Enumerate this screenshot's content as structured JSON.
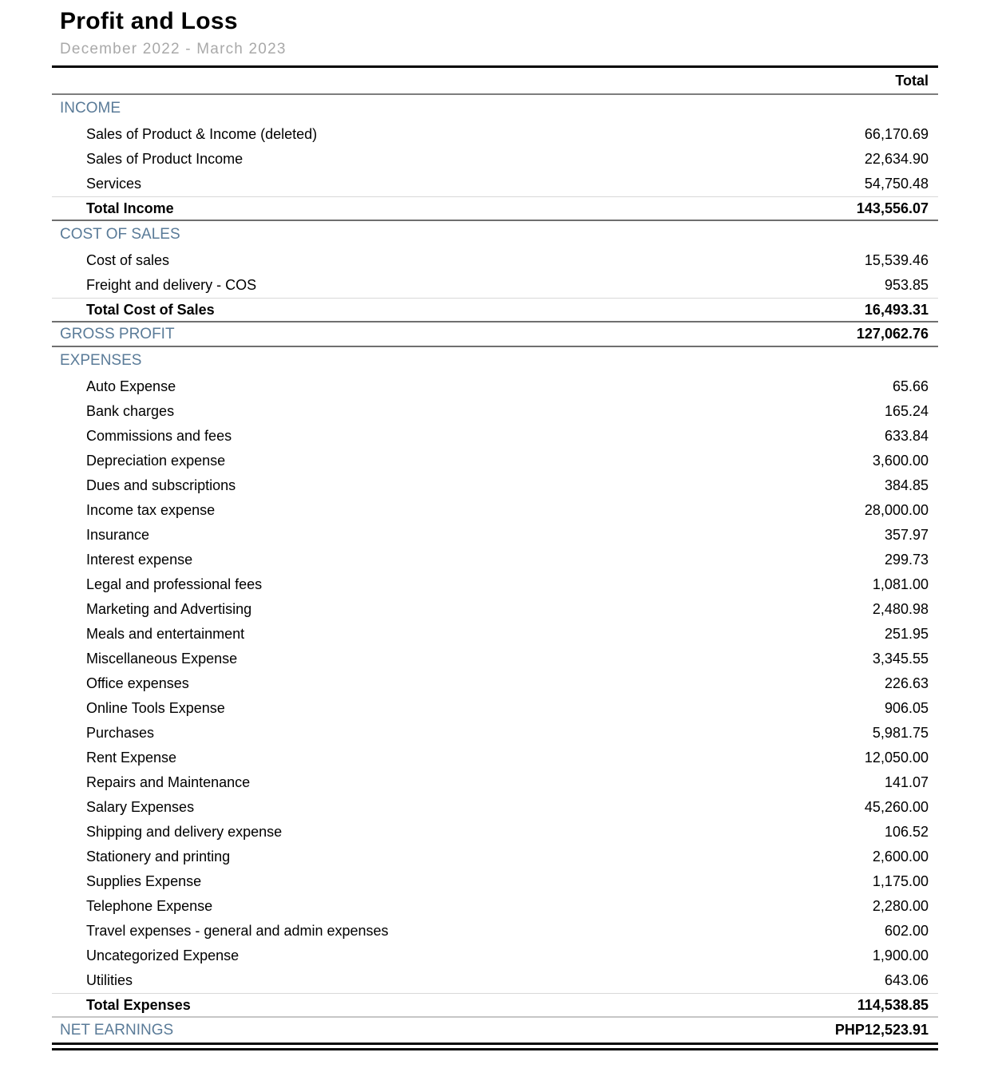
{
  "report": {
    "title": "Profit and Loss",
    "subtitle": "December 2022 - March 2023",
    "column_header": "Total",
    "currency": "PHP"
  },
  "colors": {
    "section_header_blue": "#5a7b98",
    "subtitle_gray": "#a9a9a9",
    "text_black": "#000000"
  },
  "rows": [
    {
      "type": "section",
      "label": "INCOME",
      "value": ""
    },
    {
      "type": "item",
      "label": "Sales of Product & Income (deleted)",
      "value": "66,170.69"
    },
    {
      "type": "item",
      "label": "Sales of Product Income",
      "value": "22,634.90"
    },
    {
      "type": "item",
      "label": "Services",
      "value": "54,750.48"
    },
    {
      "type": "total",
      "label": "Total Income",
      "value": "143,556.07"
    },
    {
      "type": "section",
      "label": "COST OF SALES",
      "value": ""
    },
    {
      "type": "item",
      "label": "Cost of sales",
      "value": "15,539.46"
    },
    {
      "type": "item",
      "label": "Freight and delivery - COS",
      "value": "953.85"
    },
    {
      "type": "total",
      "label": "Total Cost of Sales",
      "value": "16,493.31"
    },
    {
      "type": "grand",
      "label": "GROSS PROFIT",
      "value": "127,062.76"
    },
    {
      "type": "section",
      "label": "EXPENSES",
      "value": ""
    },
    {
      "type": "item",
      "label": "Auto Expense",
      "value": "65.66"
    },
    {
      "type": "item",
      "label": "Bank charges",
      "value": "165.24"
    },
    {
      "type": "item",
      "label": "Commissions and fees",
      "value": "633.84"
    },
    {
      "type": "item",
      "label": "Depreciation expense",
      "value": "3,600.00"
    },
    {
      "type": "item",
      "label": "Dues and subscriptions",
      "value": "384.85"
    },
    {
      "type": "item",
      "label": "Income tax expense",
      "value": "28,000.00"
    },
    {
      "type": "item",
      "label": "Insurance",
      "value": "357.97"
    },
    {
      "type": "item",
      "label": "Interest expense",
      "value": "299.73"
    },
    {
      "type": "item",
      "label": "Legal and professional fees",
      "value": "1,081.00"
    },
    {
      "type": "item",
      "label": "Marketing and Advertising",
      "value": "2,480.98"
    },
    {
      "type": "item",
      "label": "Meals and entertainment",
      "value": "251.95"
    },
    {
      "type": "item",
      "label": "Miscellaneous Expense",
      "value": "3,345.55"
    },
    {
      "type": "item",
      "label": "Office expenses",
      "value": "226.63"
    },
    {
      "type": "item",
      "label": "Online Tools Expense",
      "value": "906.05"
    },
    {
      "type": "item",
      "label": "Purchases",
      "value": "5,981.75"
    },
    {
      "type": "item",
      "label": "Rent Expense",
      "value": "12,050.00"
    },
    {
      "type": "item",
      "label": "Repairs and Maintenance",
      "value": "141.07"
    },
    {
      "type": "item",
      "label": "Salary Expenses",
      "value": "45,260.00"
    },
    {
      "type": "item",
      "label": "Shipping and delivery expense",
      "value": "106.52"
    },
    {
      "type": "item",
      "label": "Stationery and printing",
      "value": "2,600.00"
    },
    {
      "type": "item",
      "label": "Supplies Expense",
      "value": "1,175.00"
    },
    {
      "type": "item",
      "label": "Telephone Expense",
      "value": "2,280.00"
    },
    {
      "type": "item",
      "label": "Travel expenses - general and admin expenses",
      "value": "602.00"
    },
    {
      "type": "item",
      "label": "Uncategorized Expense",
      "value": "1,900.00"
    },
    {
      "type": "item",
      "label": "Utilities",
      "value": "643.06"
    },
    {
      "type": "total-light",
      "label": "Total Expenses",
      "value": "114,538.85"
    },
    {
      "type": "net",
      "label": "NET EARNINGS",
      "value": "PHP12,523.91"
    }
  ]
}
